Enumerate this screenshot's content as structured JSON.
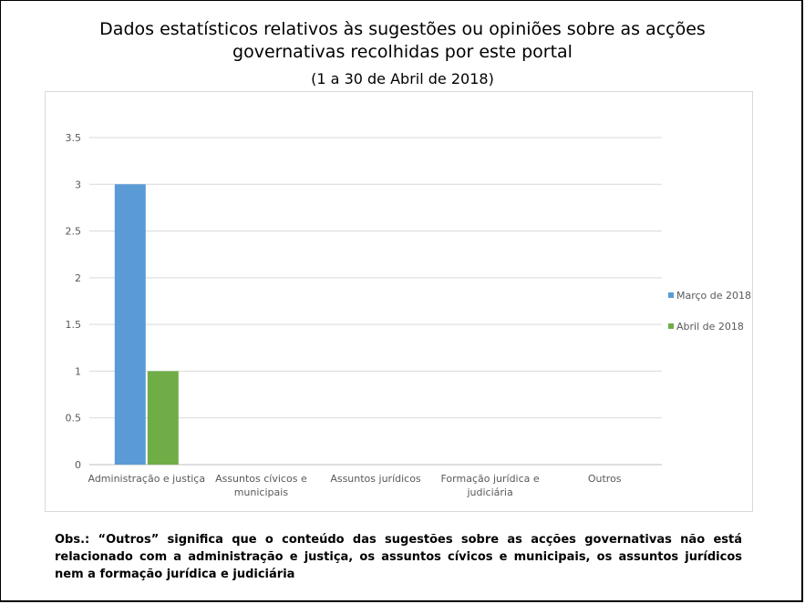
{
  "header": {
    "title": "Dados estatísticos relativos às sugestões ou opiniões sobre as acções governativas recolhidas por este portal",
    "subtitle": "(1 a 30 de Abril de 2018)"
  },
  "chart_data": {
    "type": "bar",
    "categories": [
      "Administração e justiça",
      "Assuntos cívicos e municipais",
      "Assuntos jurídicos",
      "Formação jurídica e judiciária",
      "Outros"
    ],
    "category_lines": [
      [
        "Administração e justiça"
      ],
      [
        "Assuntos cívicos e",
        "municipais"
      ],
      [
        "Assuntos jurídicos"
      ],
      [
        "Formação jurídica e",
        "judiciária"
      ],
      [
        "Outros"
      ]
    ],
    "series": [
      {
        "name": "Março de 2018",
        "color": "#5b9bd5",
        "values": [
          3,
          0,
          0,
          0,
          0
        ]
      },
      {
        "name": "Abril de 2018",
        "color": "#70ad47",
        "values": [
          1,
          0,
          0,
          0,
          0
        ]
      }
    ],
    "ylim": [
      0,
      3.5
    ],
    "yticks": [
      "0",
      "0.5",
      "1",
      "1.5",
      "2",
      "2.5",
      "3",
      "3.5"
    ],
    "grid": true,
    "legend_position": "right"
  },
  "footnote": {
    "text": "Obs.: “Outros” significa que o conteúdo das sugestões sobre as acções governativas não está relacionado com a administração e justiça, os assuntos cívicos e municipais, os assuntos jurídicos nem a formação jurídica e judiciária"
  }
}
